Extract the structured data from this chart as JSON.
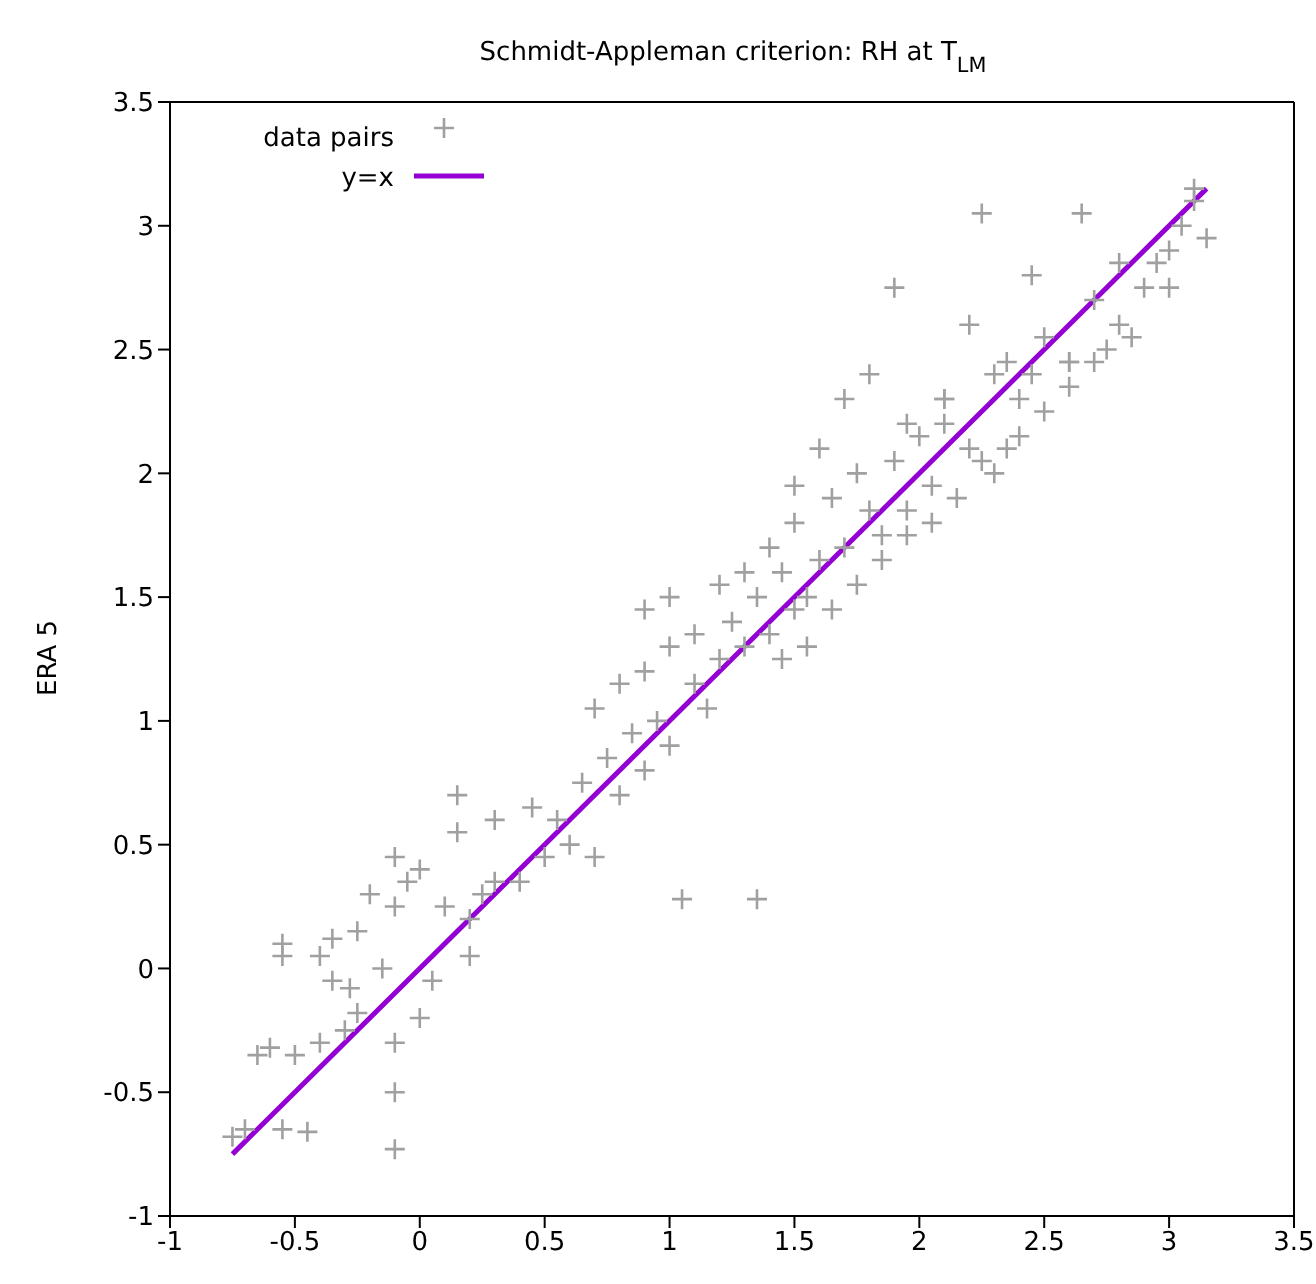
{
  "chart_data": {
    "type": "scatter",
    "title": "Schmidt-Appleman criterion: RH at T$_{LM}$",
    "ylabel": "ERA 5",
    "xlim": [
      -1,
      3.5
    ],
    "ylim": [
      -1,
      3.5
    ],
    "xticks": [
      -1,
      -0.5,
      0,
      0.5,
      1,
      1.5,
      2,
      2.5,
      3,
      3.5
    ],
    "yticks": [
      -1,
      -0.5,
      0,
      0.5,
      1,
      1.5,
      2,
      2.5,
      3,
      3.5
    ],
    "legend": "top left",
    "series": [
      {
        "name": "data pairs",
        "marker": "cross",
        "color": "#a0a0a0",
        "x": [
          -0.75,
          -0.7,
          -0.55,
          -0.45,
          -0.1,
          -0.1,
          -0.65,
          -0.6,
          -0.5,
          -0.4,
          -0.3,
          -0.25,
          -0.1,
          0.0,
          -0.55,
          -0.55,
          -0.4,
          -0.35,
          -0.25,
          -0.35,
          -0.28,
          -0.15,
          0.05,
          0.2,
          -0.2,
          -0.1,
          -0.05,
          0.0,
          -0.1,
          0.1,
          0.2,
          0.25,
          0.3,
          0.4,
          0.15,
          0.15,
          0.3,
          0.45,
          0.6,
          0.5,
          1.05,
          1.35,
          0.7,
          0.55,
          0.65,
          0.75,
          0.8,
          0.85,
          0.9,
          0.95,
          1.0,
          0.7,
          0.8,
          0.9,
          1.0,
          1.1,
          1.15,
          1.2,
          1.25,
          1.3,
          1.35,
          1.4,
          1.45,
          1.5,
          0.9,
          1.0,
          1.1,
          1.2,
          1.3,
          1.4,
          1.5,
          1.55,
          1.6,
          1.65,
          1.7,
          1.75,
          1.8,
          1.85,
          1.9,
          1.95,
          2.0,
          2.05,
          2.1,
          1.45,
          1.55,
          1.65,
          1.75,
          1.85,
          1.95,
          2.05,
          2.15,
          2.25,
          2.35,
          1.5,
          1.6,
          1.7,
          1.8,
          1.95,
          2.1,
          2.2,
          2.3,
          2.4,
          2.5,
          2.6,
          2.7,
          2.2,
          2.3,
          2.4,
          2.5,
          2.6,
          2.7,
          2.8,
          2.9,
          2.45,
          2.6,
          2.75,
          2.85,
          2.95,
          3.0,
          3.05,
          3.1,
          3.15,
          2.65,
          2.8,
          3.0,
          3.1,
          2.25,
          2.45,
          1.9,
          2.1,
          2.35
        ],
        "values": [
          -0.68,
          -0.65,
          -0.65,
          -0.66,
          -0.73,
          -0.5,
          -0.35,
          -0.32,
          -0.35,
          -0.3,
          -0.25,
          -0.18,
          -0.3,
          -0.2,
          0.1,
          0.05,
          0.05,
          0.12,
          0.15,
          -0.05,
          -0.08,
          0.0,
          -0.05,
          0.05,
          0.3,
          0.25,
          0.35,
          0.4,
          0.45,
          0.25,
          0.2,
          0.3,
          0.35,
          0.35,
          0.55,
          0.7,
          0.6,
          0.65,
          0.5,
          0.45,
          0.28,
          0.28,
          0.45,
          0.6,
          0.75,
          0.85,
          0.7,
          0.95,
          0.8,
          1.0,
          0.9,
          1.05,
          1.15,
          1.2,
          1.3,
          1.15,
          1.05,
          1.25,
          1.4,
          1.3,
          1.5,
          1.35,
          1.6,
          1.45,
          1.45,
          1.5,
          1.35,
          1.55,
          1.6,
          1.7,
          1.8,
          1.5,
          1.65,
          1.9,
          1.7,
          2.0,
          1.85,
          1.75,
          2.05,
          1.85,
          2.15,
          1.95,
          2.2,
          1.25,
          1.3,
          1.45,
          1.55,
          1.65,
          1.75,
          1.8,
          1.9,
          2.05,
          2.1,
          1.95,
          2.1,
          2.3,
          2.4,
          2.2,
          2.3,
          2.1,
          2.4,
          2.3,
          2.55,
          2.45,
          2.7,
          2.6,
          2.0,
          2.15,
          2.25,
          2.35,
          2.45,
          2.6,
          2.75,
          2.8,
          2.45,
          2.5,
          2.55,
          2.85,
          2.9,
          3.0,
          3.1,
          2.95,
          3.05,
          2.85,
          2.75,
          3.15,
          3.05,
          2.4,
          2.75,
          2.3,
          2.45
        ]
      },
      {
        "name": "y=x",
        "type": "line",
        "color": "#9400d3",
        "x": [
          -0.75,
          3.15
        ],
        "values": [
          -0.75,
          3.15
        ]
      }
    ]
  }
}
